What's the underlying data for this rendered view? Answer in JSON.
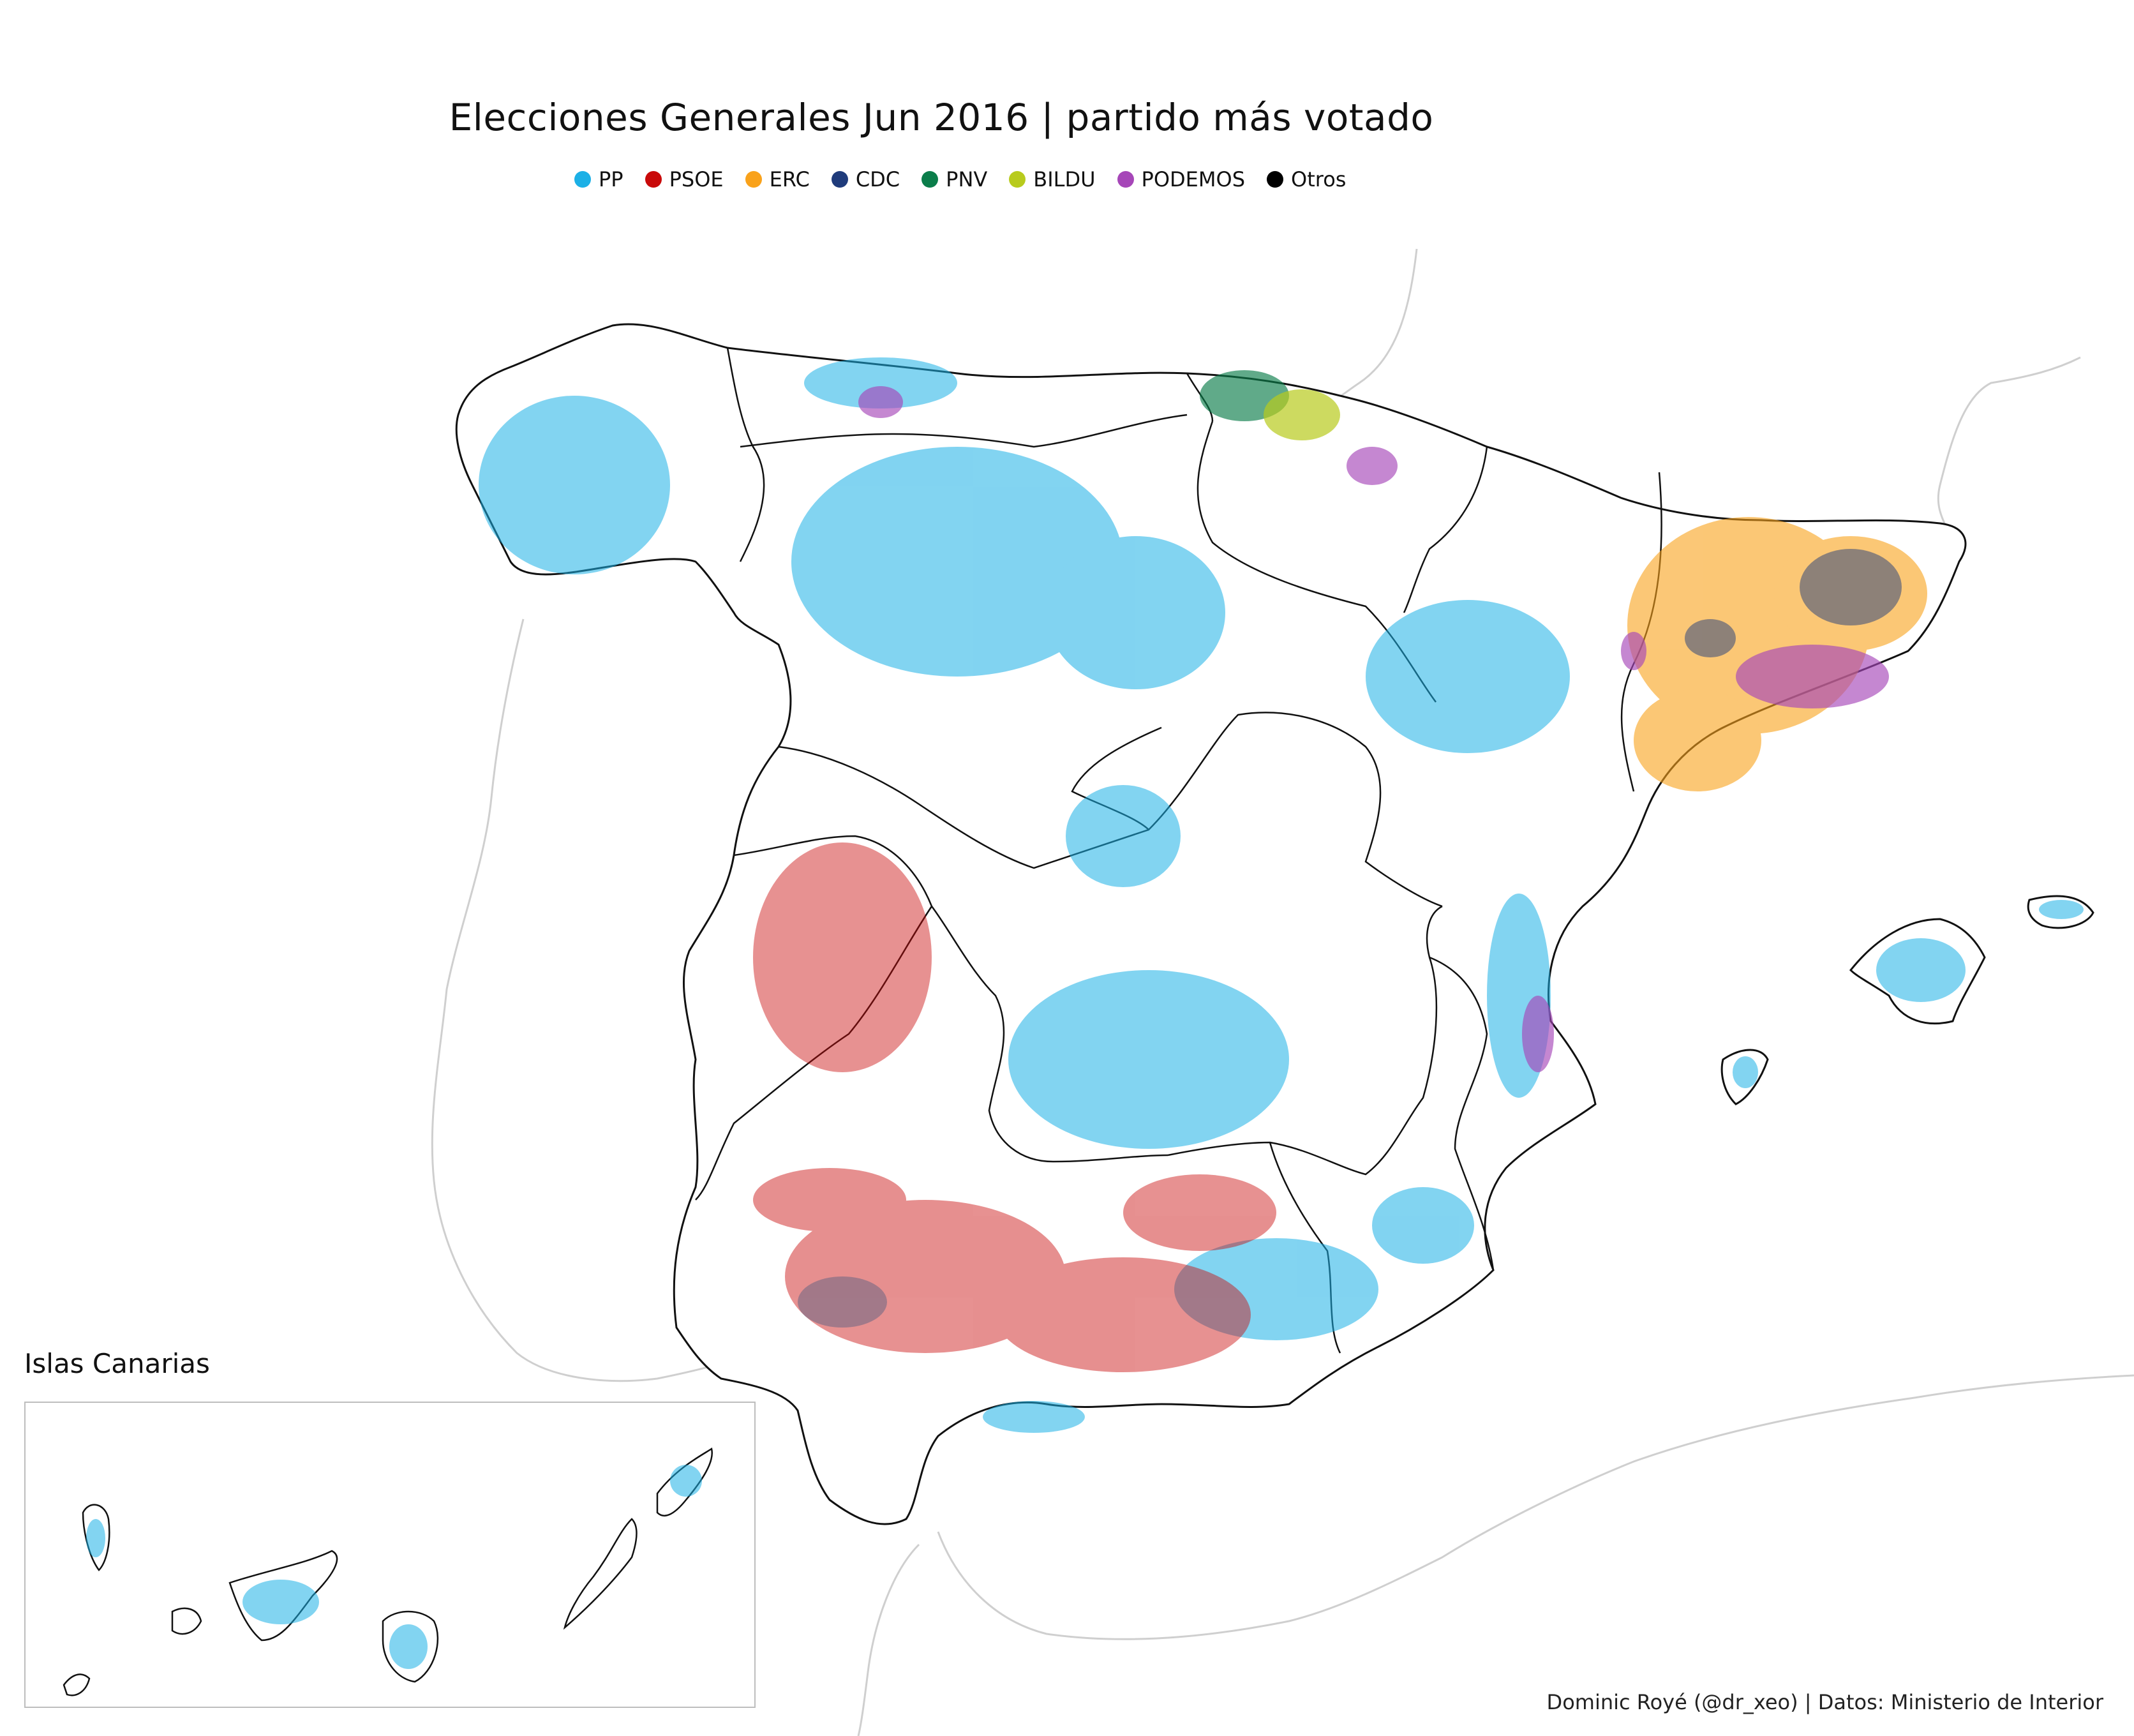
{
  "title": "Elecciones Generales Jun 2016 | partido más votado",
  "legend": [
    {
      "label": "PP",
      "color": "#1cb0e6"
    },
    {
      "label": "PSOE",
      "color": "#c90a0a"
    },
    {
      "label": "ERC",
      "color": "#f9a21b"
    },
    {
      "label": "CDC",
      "color": "#1f3b7b"
    },
    {
      "label": "PNV",
      "color": "#0b7d4a"
    },
    {
      "label": "BILDU",
      "color": "#b8cb1d"
    },
    {
      "label": "PODEMOS",
      "color": "#a646b8"
    },
    {
      "label": "Otros",
      "color": "#000000"
    }
  ],
  "inset_label": "Islas Canarias",
  "credit": "Dominic Royé (@dr_xeo) | Datos: Ministerio de Interior",
  "colors": {
    "border": "#111111",
    "coast_gray": "#cfcfcf",
    "inset_border": "#bdbdbd"
  }
}
